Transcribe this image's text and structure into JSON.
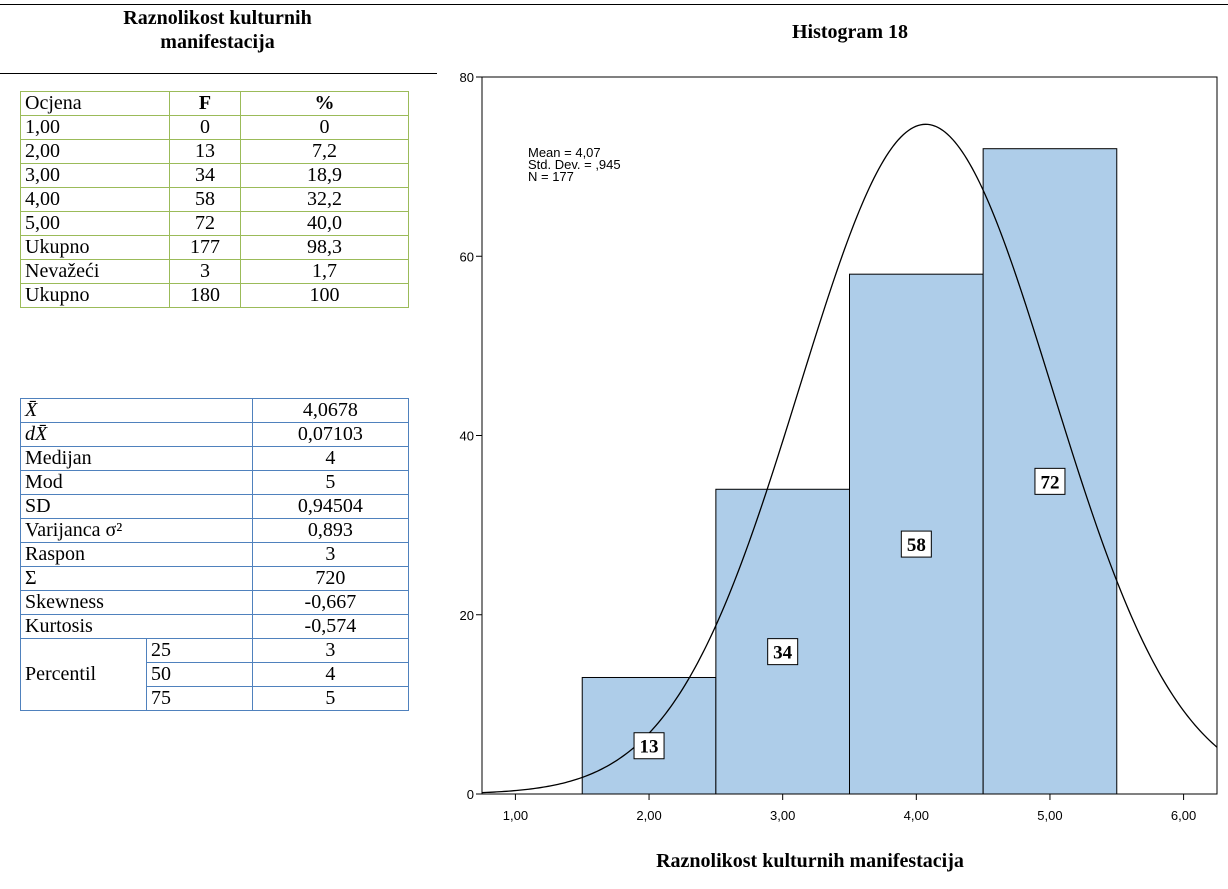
{
  "left_title": "Raznolikost kulturnih manifestacija",
  "freq_table": {
    "headers": [
      "Ocjena",
      "F",
      "%"
    ],
    "rows": [
      [
        "1,00",
        "0",
        "0"
      ],
      [
        "2,00",
        "13",
        "7,2"
      ],
      [
        "3,00",
        "34",
        "18,9"
      ],
      [
        "4,00",
        "58",
        "32,2"
      ],
      [
        "5,00",
        "72",
        "40,0"
      ],
      [
        "Ukupno",
        "177",
        "98,3"
      ],
      [
        "Nevažeći",
        "3",
        "1,7"
      ],
      [
        "Ukupno",
        "180",
        "100"
      ]
    ]
  },
  "stats_table": {
    "rows": [
      [
        "X̄",
        "4,0678"
      ],
      [
        "dX̄",
        "0,07103"
      ],
      [
        "Medijan",
        "4"
      ],
      [
        "Mod",
        "5"
      ],
      [
        "SD",
        "0,94504"
      ],
      [
        "Varijanca σ²",
        "0,893"
      ],
      [
        "Raspon",
        "3"
      ],
      [
        "Σ",
        "720"
      ],
      [
        "Skewness",
        "-0,667"
      ],
      [
        "Kurtosis",
        "-0,574"
      ]
    ],
    "percentil_label": "Percentil",
    "percentiles": [
      [
        "25",
        "3"
      ],
      [
        "50",
        "4"
      ],
      [
        "75",
        "5"
      ]
    ]
  },
  "chart_data": {
    "type": "bar",
    "title": "Histogram 18",
    "xlabel": "Raznolikost kulturnih manifestacija",
    "ylabel": "",
    "categories": [
      "2,00",
      "3,00",
      "4,00",
      "5,00"
    ],
    "bin_centers": [
      2,
      3,
      4,
      5
    ],
    "values": [
      13,
      34,
      58,
      72
    ],
    "data_labels": [
      "13",
      "34",
      "58",
      "72"
    ],
    "xlim": [
      0.75,
      6.25
    ],
    "ylim": [
      0,
      80
    ],
    "x_ticks": [
      1,
      2,
      3,
      4,
      5,
      6
    ],
    "x_tick_labels": [
      "1,00",
      "2,00",
      "3,00",
      "4,00",
      "5,00",
      "6,00"
    ],
    "y_ticks": [
      0,
      20,
      40,
      60,
      80
    ],
    "y_tick_labels": [
      "0",
      "20",
      "40",
      "60",
      "80"
    ],
    "bar_color": "#aecde9",
    "normal_curve": {
      "mean": 4.07,
      "sd": 0.945,
      "n": 177,
      "bin_width": 1
    },
    "stats_text": [
      "Mean = 4,07",
      "Std. Dev. = ,945",
      "N = 177"
    ],
    "grid": false
  }
}
